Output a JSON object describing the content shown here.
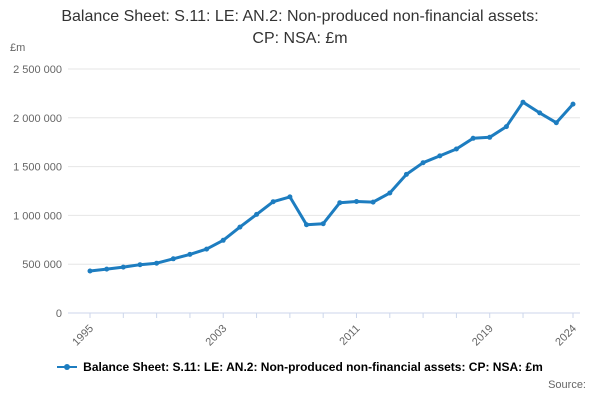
{
  "title": "Balance Sheet: S.11: LE: AN.2: Non-produced non-financial assets: CP: NSA: £m",
  "y_axis": {
    "unit": "£m",
    "tick_labels": [
      "0",
      "500 000",
      "1 000 000",
      "1 500 000",
      "2 000 000",
      "2 500 000"
    ]
  },
  "x_axis": {
    "labeled_ticks": [
      "1995",
      "2003",
      "2011",
      "2019",
      "2024"
    ]
  },
  "legend": {
    "label": "Balance Sheet: S.11: LE: AN.2: Non-produced non-financial assets: CP: NSA: £m"
  },
  "source_label": "Source:",
  "colors": {
    "line": "#1d7dc0",
    "grid": "#e6e6e6",
    "axis": "#ccd6eb",
    "labels": "#666666",
    "title": "#333333"
  },
  "chart_data": {
    "type": "line",
    "title": "Balance Sheet: S.11: LE: AN.2: Non-produced non-financial assets: CP: NSA: £m",
    "ylabel": "£m",
    "ylim": [
      0,
      2500000
    ],
    "y_tick_interval": 500000,
    "x_tick_interval": 2,
    "labeled_x_ticks": [
      1995,
      2003,
      2011,
      2019,
      2024
    ],
    "legend_position": "bottom",
    "grid": true,
    "x": [
      1995,
      1996,
      1997,
      1998,
      1999,
      2000,
      2001,
      2002,
      2003,
      2004,
      2005,
      2006,
      2007,
      2008,
      2009,
      2010,
      2011,
      2012,
      2013,
      2014,
      2015,
      2016,
      2017,
      2018,
      2019,
      2020,
      2021,
      2022,
      2023,
      2024
    ],
    "values": [
      430000,
      450000,
      470000,
      495000,
      510000,
      555000,
      600000,
      655000,
      745000,
      880000,
      1010000,
      1140000,
      1190000,
      905000,
      915000,
      1130000,
      1142000,
      1136000,
      1230000,
      1420000,
      1540000,
      1610000,
      1680000,
      1790000,
      1800000,
      1910000,
      2160000,
      2050000,
      1950000,
      2140000
    ]
  }
}
